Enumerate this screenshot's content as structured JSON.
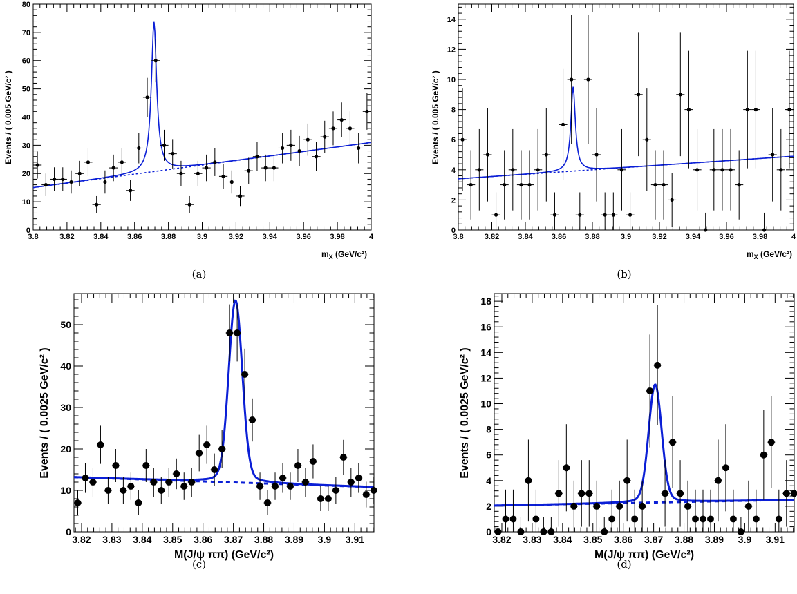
{
  "figure": {
    "captions": [
      "(a)",
      "(b)",
      "(c)",
      "(d)"
    ]
  },
  "colors": {
    "fit_line": "#0b1fd6",
    "points": "#000000"
  },
  "chart_data": [
    {
      "type": "scatter",
      "panel": "(a)",
      "ylabel": "Events / ( 0.005 GeV/c² )",
      "xlabel": "m",
      "xlabel_sub": "X",
      "xlabel_unit": " (GeV/c²)",
      "xlim": [
        3.8,
        4.0
      ],
      "ylim": [
        0,
        80
      ],
      "xticks": [
        "3.8",
        "3.82",
        "3.84",
        "3.86",
        "3.88",
        "3.9",
        "3.92",
        "3.94",
        "3.96",
        "3.98",
        "4"
      ],
      "yticks": [
        "0",
        "10",
        "20",
        "30",
        "40",
        "50",
        "60",
        "70",
        "80"
      ],
      "bin_width": 0.005,
      "marker": "small",
      "points": {
        "x": [
          3.8025,
          3.8075,
          3.8125,
          3.8175,
          3.8225,
          3.8275,
          3.8325,
          3.8375,
          3.8425,
          3.8475,
          3.8525,
          3.8575,
          3.8625,
          3.8675,
          3.8725,
          3.8775,
          3.8825,
          3.8875,
          3.8925,
          3.8975,
          3.9025,
          3.9075,
          3.9125,
          3.9175,
          3.9225,
          3.9275,
          3.9325,
          3.9375,
          3.9425,
          3.9475,
          3.9525,
          3.9575,
          3.9625,
          3.9675,
          3.9725,
          3.9775,
          3.9825,
          3.9875,
          3.9925,
          3.9975
        ],
        "y": [
          23,
          16,
          18,
          18,
          17,
          20,
          24,
          9,
          17,
          22,
          24,
          14,
          29,
          47,
          60,
          30,
          27,
          20,
          9,
          20,
          22,
          24,
          19,
          17,
          12,
          21,
          26,
          22,
          22,
          29,
          30,
          28,
          32,
          26,
          33,
          36,
          39,
          36,
          29,
          42
        ],
        "yerr": [
          4.8,
          4,
          4.2,
          4.2,
          4.1,
          4.5,
          4.9,
          3,
          4.1,
          4.7,
          4.9,
          3.7,
          5.4,
          6.9,
          7.7,
          5.5,
          5.2,
          4.5,
          3,
          4.5,
          4.7,
          4.9,
          4.4,
          4.1,
          3.5,
          4.6,
          5.1,
          4.7,
          4.7,
          5.4,
          5.5,
          5.3,
          5.7,
          5.1,
          5.7,
          6,
          6.2,
          6,
          5.4,
          6.5
        ]
      },
      "fit": {
        "bkg_start": 15,
        "bkg_end": 31,
        "peak_mass": 3.8715,
        "peak_height": 53,
        "gamma": 0.0019,
        "peak_shape": "lorentzian"
      }
    },
    {
      "type": "scatter",
      "panel": "(b)",
      "ylabel": "Events / ( 0.005 GeV/c² )",
      "xlabel": "m",
      "xlabel_sub": "X",
      "xlabel_unit": " (GeV/c²)",
      "xlim": [
        3.8,
        4.0
      ],
      "ylim": [
        0,
        15
      ],
      "xticks": [
        "3.8",
        "3.82",
        "3.84",
        "3.86",
        "3.88",
        "3.9",
        "3.92",
        "3.94",
        "3.96",
        "3.98",
        "4"
      ],
      "yticks": [
        "0",
        "2",
        "4",
        "6",
        "8",
        "10",
        "12",
        "14"
      ],
      "bin_width": 0.005,
      "marker": "small",
      "points": {
        "x": [
          3.8025,
          3.8075,
          3.8125,
          3.8175,
          3.8225,
          3.8275,
          3.8325,
          3.8375,
          3.8425,
          3.8475,
          3.8525,
          3.8575,
          3.8625,
          3.8675,
          3.8725,
          3.8775,
          3.8825,
          3.8875,
          3.8925,
          3.8975,
          3.9025,
          3.9075,
          3.9125,
          3.9175,
          3.9225,
          3.9275,
          3.9325,
          3.9375,
          3.9425,
          3.9475,
          3.9525,
          3.9575,
          3.9625,
          3.9675,
          3.9725,
          3.9775,
          3.9825,
          3.9875,
          3.9925,
          3.9975
        ],
        "y": [
          6,
          3,
          4,
          5,
          1,
          3,
          4,
          3,
          3,
          4,
          5,
          1,
          7,
          10,
          1,
          10,
          5,
          1,
          1,
          4,
          1,
          9,
          6,
          3,
          3,
          2,
          9,
          8,
          4,
          0,
          4,
          4,
          4,
          3,
          8,
          8,
          0,
          5,
          4,
          8
        ],
        "yerr": [
          3.4,
          2.3,
          2.7,
          3.1,
          1.5,
          2.3,
          2.7,
          2.3,
          2.3,
          2.7,
          3.1,
          1.5,
          3.7,
          4.3,
          1.5,
          4.3,
          3.1,
          1.5,
          1.5,
          2.7,
          1.5,
          4.1,
          3.4,
          2.3,
          2.3,
          1.8,
          4.1,
          3.9,
          2.7,
          1.15,
          2.7,
          2.7,
          2.7,
          2.3,
          3.9,
          3.9,
          1.15,
          3.1,
          2.7,
          3.9
        ]
      },
      "fit": {
        "bkg_start": 3.4,
        "bkg_end": 4.9,
        "peak_mass": 3.8685,
        "peak_height": 5.6,
        "gamma": 0.0016,
        "peak_shape": "lorentzian"
      }
    },
    {
      "type": "scatter",
      "panel": "(c)",
      "ylabel": "Events / ( 0.0025 GeV/c² )",
      "xlabel": "M(J/ψ ππ) (GeV/c²)",
      "xlim": [
        3.8175,
        3.9163
      ],
      "ylim": [
        0,
        57.5
      ],
      "xticks": [
        "3.82",
        "3.83",
        "3.84",
        "3.85",
        "3.86",
        "3.87",
        "3.88",
        "3.89",
        "3.9",
        "3.91"
      ],
      "xtick_values": [
        3.82,
        3.83,
        3.84,
        3.85,
        3.86,
        3.87,
        3.88,
        3.89,
        3.9,
        3.91
      ],
      "yticks": [
        "0",
        "10",
        "20",
        "30",
        "40",
        "50"
      ],
      "ytick_values": [
        0,
        10,
        20,
        30,
        40,
        50
      ],
      "bin_width": 0.0025,
      "marker": "large",
      "points": {
        "x": [
          3.81875,
          3.82125,
          3.82375,
          3.82625,
          3.82875,
          3.83125,
          3.83375,
          3.83625,
          3.83875,
          3.84125,
          3.84375,
          3.84625,
          3.84875,
          3.85125,
          3.85375,
          3.85625,
          3.85875,
          3.86125,
          3.86375,
          3.86625,
          3.86875,
          3.87125,
          3.87375,
          3.87625,
          3.87875,
          3.88125,
          3.88375,
          3.88625,
          3.88875,
          3.89125,
          3.89375,
          3.89625,
          3.89875,
          3.90125,
          3.90375,
          3.90625,
          3.90875,
          3.91125,
          3.91375,
          3.91625
        ],
        "y": [
          7,
          13,
          12,
          21,
          10,
          16,
          10,
          11,
          7,
          16,
          12,
          10,
          12,
          14,
          11,
          12,
          19,
          21,
          15,
          20,
          48,
          48,
          38,
          27,
          11,
          7,
          11,
          13,
          11,
          16,
          12,
          17,
          8,
          8,
          10,
          18,
          12,
          13,
          9,
          10
        ],
        "yerr": [
          3,
          3.6,
          3.5,
          4.6,
          3.2,
          4,
          3.2,
          3.3,
          3,
          4,
          3.5,
          3.2,
          3.5,
          3.7,
          3.3,
          3.5,
          4.4,
          4.6,
          3.9,
          4.5,
          6.9,
          6.9,
          6.2,
          5.2,
          3.3,
          3,
          3.3,
          3.6,
          3.3,
          4,
          3.5,
          4.1,
          3,
          3,
          3.2,
          4.2,
          3.5,
          3.6,
          3.1,
          3.2
        ]
      },
      "fit": {
        "bkg_start": 13.2,
        "bkg_end": 10.8,
        "peak_mass": 3.8707,
        "peak_height": 43.9,
        "sigma": 0.0022,
        "peak_shape": "gaussian"
      }
    },
    {
      "type": "scatter",
      "panel": "(d)",
      "ylabel": "Events / ( 0.0025 GeV/c² )",
      "xlabel": "M(J/ψ ππ) (GeV/c²)",
      "xlim": [
        3.8175,
        3.9163
      ],
      "ylim": [
        0,
        18.6
      ],
      "xticks": [
        "3.82",
        "3.83",
        "3.84",
        "3.85",
        "3.86",
        "3.87",
        "3.88",
        "3.89",
        "3.9",
        "3.91"
      ],
      "xtick_values": [
        3.82,
        3.83,
        3.84,
        3.85,
        3.86,
        3.87,
        3.88,
        3.89,
        3.9,
        3.91
      ],
      "yticks": [
        "0",
        "2",
        "4",
        "6",
        "8",
        "10",
        "12",
        "14",
        "16",
        "18"
      ],
      "ytick_values": [
        0,
        2,
        4,
        6,
        8,
        10,
        12,
        14,
        16,
        18
      ],
      "bin_width": 0.0025,
      "marker": "large",
      "points": {
        "x": [
          3.81875,
          3.82125,
          3.82375,
          3.82625,
          3.82875,
          3.83125,
          3.83375,
          3.83625,
          3.83875,
          3.84125,
          3.84375,
          3.84625,
          3.84875,
          3.85125,
          3.85375,
          3.85625,
          3.85875,
          3.86125,
          3.86375,
          3.86625,
          3.86875,
          3.87125,
          3.87375,
          3.87625,
          3.87875,
          3.88125,
          3.88375,
          3.88625,
          3.88875,
          3.89125,
          3.89375,
          3.89625,
          3.89875,
          3.90125,
          3.90375,
          3.90625,
          3.90875,
          3.91125,
          3.91375,
          3.91625
        ],
        "y": [
          0,
          1,
          1,
          0,
          4,
          1,
          0,
          0,
          3,
          5,
          2,
          3,
          3,
          2,
          0,
          1,
          2,
          4,
          1,
          2,
          11,
          13,
          3,
          7,
          3,
          2,
          1,
          1,
          1,
          4,
          5,
          1,
          0,
          2,
          1,
          6,
          7,
          1,
          3,
          3
        ],
        "yerr": [
          1.15,
          2.3,
          2.3,
          1.15,
          3.2,
          2.3,
          1.15,
          1.15,
          2.6,
          3.4,
          2,
          2.6,
          2.6,
          2,
          1.15,
          2.3,
          2,
          3.2,
          2.3,
          2,
          4.4,
          4.7,
          2.6,
          3.6,
          2.6,
          2,
          2.3,
          2.3,
          2.3,
          3.2,
          3.4,
          2.3,
          1.15,
          2,
          2.3,
          3.5,
          3.6,
          2.3,
          2.6,
          2.6
        ]
      },
      "fit": {
        "bkg_start": 2.05,
        "bkg_end": 2.5,
        "peak_mass": 3.8705,
        "peak_height": 9.2,
        "sigma": 0.0021,
        "peak_shape": "gaussian"
      }
    }
  ]
}
